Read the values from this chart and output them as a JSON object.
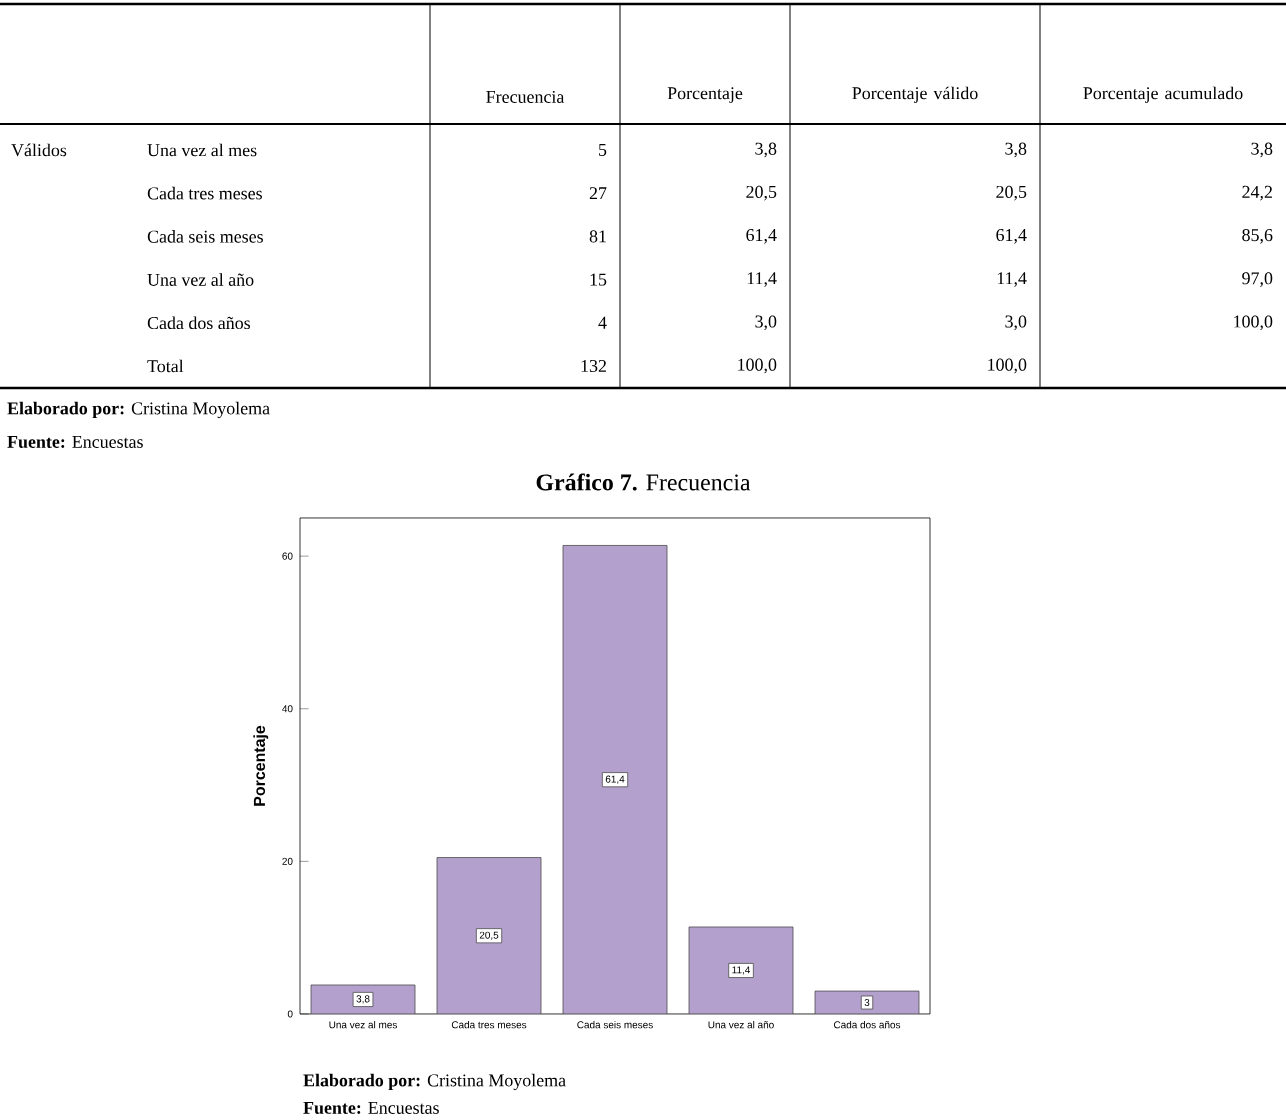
{
  "chart_data": [
    {
      "type": "other",
      "ylabel": "Válidos",
      "categories": [
        "Frecuencia",
        "Porcentaje",
        "Porcentaje válido",
        "Porcentaje acumulado"
      ],
      "y_categories": [
        "Una vez al mes",
        "Cada tres meses",
        "Cada seis meses",
        "Una vez al año",
        "Cada dos años",
        "Total"
      ],
      "cell_labels": [
        [
          "5",
          "3,8",
          "3,8",
          "3,8"
        ],
        [
          "27",
          "20,5",
          "20,5",
          "24,2"
        ],
        [
          "81",
          "61,4",
          "61,4",
          "85,6"
        ],
        [
          "15",
          "11,4",
          "11,4",
          "97,0"
        ],
        [
          "4",
          "3,0",
          "3,0",
          "100,0"
        ],
        [
          "132",
          "100,0",
          "100,0",
          null
        ]
      ],
      "annotations": [
        "**Elaborado por:** Cristina Moyolema",
        "**Fuente:** Encuestas"
      ]
    },
    {
      "type": "bar",
      "title": "**Gráfico 7.** Frecuencia",
      "ylabel": "Porcentaje",
      "categories": [
        "Una vez al mes",
        "Cada tres meses",
        "Cada seis meses",
        "Una vez al año",
        "Cada dos años"
      ],
      "values": [
        3.8,
        20.5,
        61.4,
        11.4,
        3.0
      ],
      "color": "#b4a0cc",
      "value_labels": [
        "3,8",
        "20,5",
        "61,4",
        "11,4",
        "3"
      ],
      "ylim": [
        0,
        65
      ],
      "yticks": [
        0,
        20,
        40,
        60
      ],
      "annotations": [
        "**Elaborado por:** Cristina Moyolema",
        "**Fuente:** Encuestas"
      ]
    }
  ]
}
